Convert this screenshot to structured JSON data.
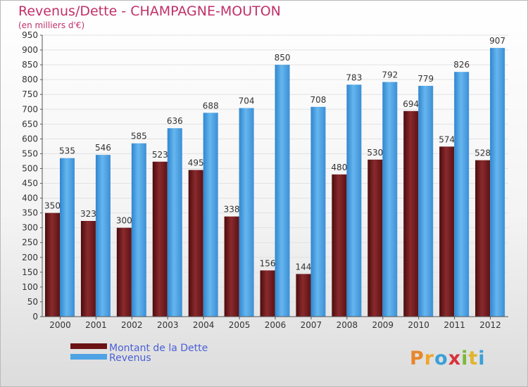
{
  "chart_data": {
    "type": "bar",
    "title": "Revenus/Dette - CHAMPAGNE-MOUTON",
    "subtitle": "(en milliers d'€)",
    "xlabel": "",
    "ylabel": "",
    "ylim": [
      0,
      950
    ],
    "ytick_step": 50,
    "grid": true,
    "legend_position": "bottom-left",
    "categories": [
      "2000",
      "2001",
      "2002",
      "2003",
      "2004",
      "2005",
      "2006",
      "2007",
      "2008",
      "2009",
      "2010",
      "2011",
      "2012"
    ],
    "series": [
      {
        "name": "Montant de la Dette",
        "color": "#7a1a1c",
        "values": [
          350,
          323,
          300,
          523,
          495,
          338,
          156,
          144,
          480,
          530,
          694,
          574,
          528
        ]
      },
      {
        "name": "Revenus",
        "color": "#4ea3e4",
        "values": [
          535,
          546,
          585,
          636,
          688,
          704,
          850,
          708,
          783,
          792,
          779,
          826,
          907
        ]
      }
    ]
  },
  "logo": {
    "letters": [
      "P",
      "r",
      "o",
      "x",
      "i",
      "t",
      "i"
    ],
    "colors": [
      "#e8862c",
      "#f0a52a",
      "#3aa0d8",
      "#d8323c",
      "#7cb83a",
      "#e0b52c",
      "#3aa0d8"
    ]
  }
}
